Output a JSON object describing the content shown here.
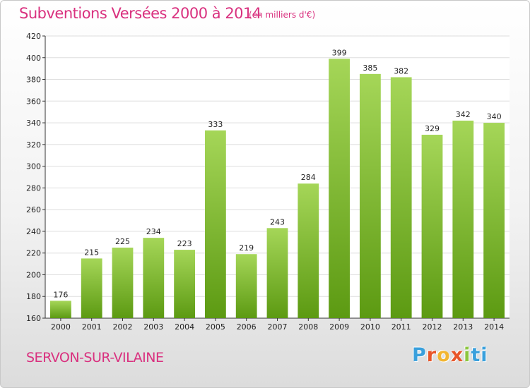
{
  "header": {
    "title": "Subventions Versées 2000 à 2014",
    "unit": "(en milliers d'€)"
  },
  "footer": {
    "city": "SERVON-SUR-VILAINE",
    "logo": [
      "P",
      "r",
      "o",
      "x",
      "i",
      "ti"
    ]
  },
  "colors": {
    "title": "#d9317f",
    "bar_top": "#9fd24f",
    "bar_bottom": "#5c9a12",
    "grid": "#d8d8d8"
  },
  "chart_data": {
    "type": "bar",
    "categories": [
      "2000",
      "2001",
      "2002",
      "2003",
      "2004",
      "2005",
      "2006",
      "2007",
      "2008",
      "2009",
      "2010",
      "2011",
      "2012",
      "2013",
      "2014"
    ],
    "values": [
      176,
      215,
      225,
      234,
      223,
      333,
      219,
      243,
      284,
      399,
      385,
      382,
      329,
      342,
      340
    ],
    "title": "Subventions Versées 2000 à 2014",
    "ylim": [
      160,
      420
    ],
    "yticks": [
      160,
      180,
      200,
      220,
      240,
      260,
      280,
      300,
      320,
      340,
      360,
      380,
      400,
      420
    ],
    "grid": true,
    "legend": "none"
  }
}
